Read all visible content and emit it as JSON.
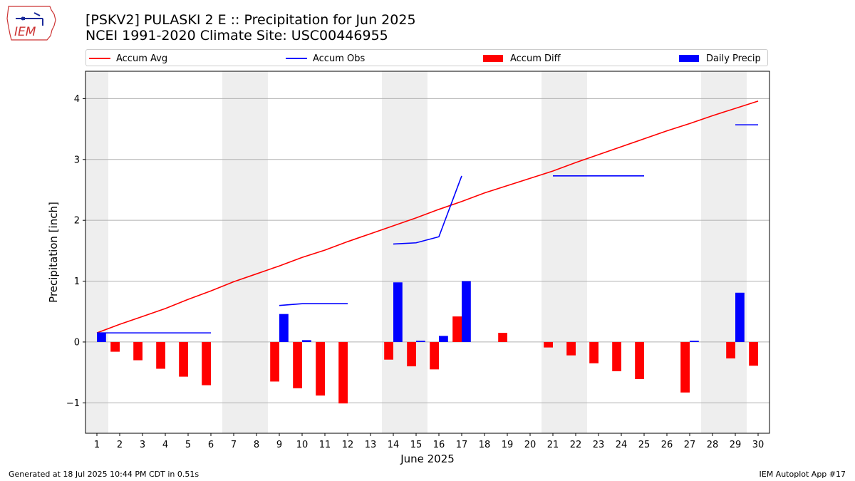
{
  "header": {
    "title_line1": "[PSKV2] PULASKI 2 E :: Precipitation for Jun 2025",
    "title_line2": "NCEI 1991-2020 Climate Site: USC00446955",
    "logo_text": "IEM"
  },
  "legend": {
    "items": [
      {
        "label": "Accum Avg",
        "kind": "line",
        "color": "#ff0000"
      },
      {
        "label": "Accum Obs",
        "kind": "line",
        "color": "#0000ff"
      },
      {
        "label": "Accum Diff",
        "kind": "box",
        "color": "#ff0000"
      },
      {
        "label": "Daily Precip",
        "kind": "box",
        "color": "#0000ff"
      }
    ]
  },
  "footer": {
    "left": "Generated at 18 Jul 2025 10:44 PM CDT in 0.51s",
    "right": "IEM Autoplot App #17"
  },
  "chart_data": {
    "type": "bar",
    "xlabel": "June 2025",
    "ylabel": "Precipitation [inch]",
    "ylim": [
      -1.5,
      4.45
    ],
    "yticks": [
      -1,
      0,
      1,
      2,
      3,
      4
    ],
    "xlim": [
      0.5,
      30.5
    ],
    "xticks": [
      1,
      2,
      3,
      4,
      5,
      6,
      7,
      8,
      9,
      10,
      11,
      12,
      13,
      14,
      15,
      16,
      17,
      18,
      19,
      20,
      21,
      22,
      23,
      24,
      25,
      26,
      27,
      28,
      29,
      30
    ],
    "grid": "horizontal",
    "legend_position": "top",
    "weekend_days": [
      1,
      7,
      8,
      14,
      15,
      21,
      22,
      28,
      29
    ],
    "days": [
      1,
      2,
      3,
      4,
      5,
      6,
      7,
      8,
      9,
      10,
      11,
      12,
      13,
      14,
      15,
      16,
      17,
      18,
      19,
      20,
      21,
      22,
      23,
      24,
      25,
      26,
      27,
      28,
      29,
      30
    ],
    "series": [
      {
        "name": "Accum Avg",
        "color": "#ff0000",
        "values": [
          0.15,
          0.29,
          0.42,
          0.55,
          0.7,
          0.84,
          0.99,
          1.12,
          1.25,
          1.39,
          1.51,
          1.65,
          1.78,
          1.91,
          2.04,
          2.18,
          2.31,
          2.45,
          2.57,
          2.69,
          2.81,
          2.95,
          3.08,
          3.21,
          3.34,
          3.47,
          3.59,
          3.72,
          3.84,
          3.96
        ]
      },
      {
        "name": "Accum Obs",
        "color": "#0000ff",
        "segments": [
          {
            "x": [
              1,
              2,
              3,
              4,
              5,
              6
            ],
            "y": [
              0.15,
              0.15,
              0.15,
              0.15,
              0.15,
              0.15
            ]
          },
          {
            "x": [
              9,
              10,
              11,
              12
            ],
            "y": [
              0.6,
              0.63,
              0.63,
              0.63
            ]
          },
          {
            "x": [
              14,
              15,
              16,
              17
            ],
            "y": [
              1.61,
              1.63,
              1.73,
              2.73
            ]
          },
          {
            "x": [
              21,
              22,
              23,
              24,
              25
            ],
            "y": [
              2.73,
              2.73,
              2.73,
              2.73,
              2.73
            ]
          },
          {
            "x": [
              29,
              30
            ],
            "y": [
              3.57,
              3.57
            ]
          }
        ]
      },
      {
        "name": "Accum Diff",
        "color": "#ff0000",
        "values": [
          0,
          -0.16,
          -0.3,
          -0.44,
          -0.57,
          -0.71,
          null,
          null,
          -0.65,
          -0.76,
          -0.88,
          -1.01,
          null,
          -0.29,
          -0.4,
          -0.45,
          0.42,
          null,
          0.15,
          null,
          -0.09,
          -0.22,
          -0.35,
          -0.48,
          -0.61,
          null,
          -0.83,
          null,
          -0.27,
          -0.39
        ]
      },
      {
        "name": "Daily Precip",
        "color": "#0000ff",
        "values": [
          0.15,
          0,
          0,
          0,
          0,
          0,
          0,
          0,
          0.46,
          0.03,
          0,
          0,
          0,
          0.98,
          0.02,
          0.1,
          1.0,
          0,
          0,
          0,
          0,
          0,
          0,
          0,
          0,
          0,
          0.02,
          0,
          0.81,
          0
        ]
      }
    ]
  }
}
